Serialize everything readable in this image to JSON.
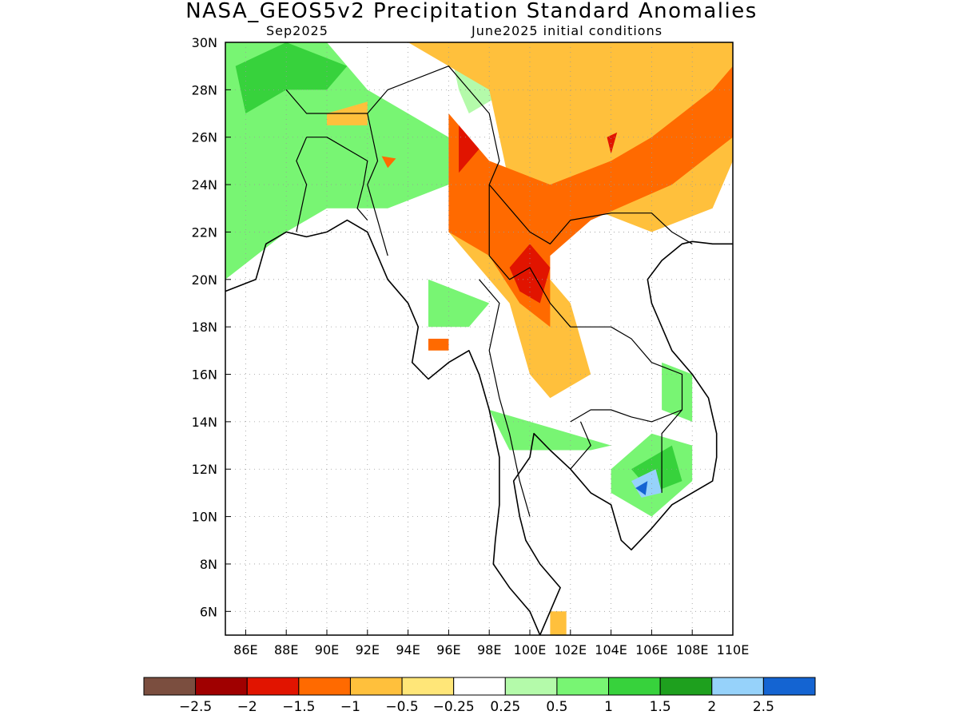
{
  "title": "NASA_GEOS5v2 Precipitation Standard Anomalies",
  "subtitle_left": "Sep2025",
  "subtitle_right": "June2025 initial conditions",
  "map": {
    "lon_range": [
      85,
      110
    ],
    "lat_range": [
      5,
      30
    ],
    "lon_ticks": [
      86,
      88,
      90,
      92,
      94,
      96,
      98,
      100,
      102,
      104,
      106,
      108,
      110
    ],
    "lat_ticks": [
      6,
      8,
      10,
      12,
      14,
      16,
      18,
      20,
      22,
      24,
      26,
      28,
      30
    ],
    "lon_tick_labels": [
      "86E",
      "88E",
      "90E",
      "92E",
      "94E",
      "96E",
      "98E",
      "100E",
      "102E",
      "104E",
      "106E",
      "108E",
      "110E"
    ],
    "lat_tick_labels": [
      "6N",
      "8N",
      "10N",
      "12N",
      "14N",
      "16N",
      "18N",
      "20N",
      "22N",
      "24N",
      "26N",
      "28N",
      "30N"
    ],
    "grid": "dotted",
    "anomaly_regions": [
      {
        "level": 1,
        "color": "#78f573",
        "lonlat": [
          [
            85,
            30
          ],
          [
            90,
            30
          ],
          [
            92,
            28
          ],
          [
            96,
            26
          ],
          [
            96,
            24
          ],
          [
            93,
            23
          ],
          [
            90,
            23
          ],
          [
            88,
            22
          ],
          [
            85,
            20
          ]
        ]
      },
      {
        "level": 1.5,
        "color": "#37d23c",
        "lonlat": [
          [
            85.5,
            29
          ],
          [
            88,
            30
          ],
          [
            91,
            29
          ],
          [
            90,
            28
          ],
          [
            88,
            28
          ],
          [
            86,
            27
          ]
        ]
      },
      {
        "level": 1,
        "color": "#78f573",
        "lonlat": [
          [
            95,
            20
          ],
          [
            98,
            19
          ],
          [
            97,
            18
          ],
          [
            95,
            18
          ]
        ]
      },
      {
        "level": 1,
        "color": "#78f573",
        "lonlat": [
          [
            98,
            14.5
          ],
          [
            104,
            13
          ],
          [
            103,
            12.8
          ],
          [
            99,
            12.8
          ]
        ]
      },
      {
        "level": 1,
        "color": "#78f573",
        "lonlat": [
          [
            104,
            12
          ],
          [
            106,
            13.5
          ],
          [
            108,
            13
          ],
          [
            108,
            11.5
          ],
          [
            106,
            10
          ],
          [
            104,
            11
          ]
        ]
      },
      {
        "level": 1.5,
        "color": "#37d23c",
        "lonlat": [
          [
            105,
            12
          ],
          [
            107,
            13
          ],
          [
            107.5,
            11.5
          ],
          [
            106,
            11
          ]
        ]
      },
      {
        "level": 2,
        "color": "#96d2fa",
        "lonlat": [
          [
            105,
            11.5
          ],
          [
            106.2,
            12
          ],
          [
            106.5,
            11
          ],
          [
            105.5,
            10.8
          ]
        ]
      },
      {
        "level": 2.5,
        "color": "#1464d2",
        "lonlat": [
          [
            105.2,
            11.2
          ],
          [
            105.8,
            11.5
          ],
          [
            105.7,
            10.9
          ]
        ]
      },
      {
        "level": 1,
        "color": "#78f573",
        "lonlat": [
          [
            106.5,
            16.5
          ],
          [
            108,
            16
          ],
          [
            108,
            14
          ],
          [
            106.5,
            14.5
          ]
        ]
      },
      {
        "level": 0.5,
        "color": "#b4faaa",
        "lonlat": [
          [
            96,
            30
          ],
          [
            99,
            28
          ],
          [
            97,
            27
          ],
          [
            96.5,
            28
          ]
        ]
      },
      {
        "level": -0.5,
        "color": "#ffc03c",
        "lonlat": [
          [
            94,
            30
          ],
          [
            98,
            28
          ],
          [
            99,
            24
          ],
          [
            101,
            23
          ],
          [
            103,
            23
          ],
          [
            106,
            22
          ],
          [
            109,
            23
          ],
          [
            110,
            25
          ],
          [
            110,
            30
          ],
          [
            100,
            30
          ],
          [
            98,
            30
          ]
        ]
      },
      {
        "level": -0.5,
        "color": "#ffc03c",
        "lonlat": [
          [
            96,
            22
          ],
          [
            99,
            19
          ],
          [
            100,
            16
          ],
          [
            101,
            15
          ],
          [
            103,
            16
          ],
          [
            102,
            19
          ],
          [
            100,
            21
          ],
          [
            97,
            24
          ]
        ]
      },
      {
        "level": -1,
        "color": "#ff6a00",
        "lonlat": [
          [
            96,
            27
          ],
          [
            98,
            25
          ],
          [
            101,
            24
          ],
          [
            104,
            25
          ],
          [
            106,
            26
          ],
          [
            109,
            28
          ],
          [
            110,
            29
          ],
          [
            110,
            26
          ],
          [
            107,
            24
          ],
          [
            103,
            22.5
          ],
          [
            101,
            21
          ],
          [
            101,
            18
          ],
          [
            99.5,
            19
          ],
          [
            98,
            21
          ],
          [
            96,
            22
          ]
        ]
      },
      {
        "level": -1.5,
        "color": "#e11400",
        "lonlat": [
          [
            96.5,
            26.5
          ],
          [
            97.5,
            25.5
          ],
          [
            96.5,
            24.5
          ]
        ]
      },
      {
        "level": -1.5,
        "color": "#e11400",
        "lonlat": [
          [
            99,
            20.5
          ],
          [
            100,
            21.5
          ],
          [
            101,
            20.5
          ],
          [
            100.5,
            19
          ],
          [
            99.5,
            19.5
          ]
        ]
      },
      {
        "level": -1.5,
        "color": "#e11400",
        "lonlat": [
          [
            103.8,
            26
          ],
          [
            104.3,
            26.2
          ],
          [
            104,
            25.3
          ]
        ]
      },
      {
        "level": -1,
        "color": "#ff6a00",
        "lonlat": [
          [
            95,
            17.5
          ],
          [
            96,
            17.5
          ],
          [
            96,
            17
          ],
          [
            95,
            17
          ]
        ]
      },
      {
        "level": -0.5,
        "color": "#ffc03c",
        "lonlat": [
          [
            90,
            27
          ],
          [
            92,
            27.5
          ],
          [
            92,
            26.5
          ],
          [
            90,
            26.5
          ]
        ]
      },
      {
        "level": -1,
        "color": "#ff6a00",
        "lonlat": [
          [
            92.7,
            25.2
          ],
          [
            93.4,
            25.1
          ],
          [
            93,
            24.7
          ]
        ]
      },
      {
        "level": -0.5,
        "color": "#ffc03c",
        "lonlat": [
          [
            101,
            6
          ],
          [
            101.8,
            6
          ],
          [
            101.8,
            5
          ],
          [
            101,
            5
          ]
        ]
      }
    ],
    "coastlines": [
      [
        [
          85,
          19.5
        ],
        [
          86.5,
          20
        ],
        [
          87,
          21.5
        ],
        [
          88,
          22
        ],
        [
          89,
          21.8
        ],
        [
          90,
          22
        ],
        [
          91,
          22.5
        ],
        [
          92,
          22
        ],
        [
          92.5,
          21
        ],
        [
          93,
          20
        ],
        [
          94,
          19
        ],
        [
          94.5,
          18
        ],
        [
          94.2,
          16.5
        ],
        [
          95,
          15.8
        ],
        [
          96,
          16.5
        ],
        [
          97,
          17
        ],
        [
          97.5,
          16
        ],
        [
          98,
          14.5
        ],
        [
          98.5,
          12.5
        ],
        [
          98.5,
          10.5
        ],
        [
          98.3,
          9
        ],
        [
          98.2,
          8
        ],
        [
          99,
          7
        ],
        [
          100,
          6
        ],
        [
          100.5,
          5
        ]
      ],
      [
        [
          100.5,
          5
        ],
        [
          101,
          6
        ],
        [
          101.5,
          7
        ],
        [
          100.5,
          8
        ],
        [
          99.8,
          9
        ],
        [
          99.5,
          10
        ],
        [
          99.2,
          11.5
        ],
        [
          100,
          12.5
        ],
        [
          100.2,
          13.5
        ],
        [
          101,
          12.8
        ],
        [
          102,
          12
        ],
        [
          103,
          11
        ],
        [
          104,
          10.5
        ],
        [
          104.5,
          9
        ],
        [
          105,
          8.6
        ],
        [
          106,
          9.5
        ],
        [
          107,
          10.5
        ],
        [
          108,
          11
        ],
        [
          109,
          11.5
        ],
        [
          109.2,
          12.5
        ],
        [
          109.2,
          13.5
        ],
        [
          108.8,
          15
        ],
        [
          108,
          16
        ],
        [
          107,
          17
        ],
        [
          106.5,
          18
        ],
        [
          106,
          19
        ],
        [
          105.8,
          20
        ],
        [
          106.5,
          20.8
        ],
        [
          107.5,
          21.5
        ],
        [
          108,
          21.6
        ],
        [
          109,
          21.5
        ],
        [
          110,
          21.5
        ]
      ]
    ],
    "borders": [
      [
        [
          88,
          28
        ],
        [
          89,
          27
        ],
        [
          92,
          27
        ],
        [
          93,
          28
        ],
        [
          96,
          29
        ],
        [
          97,
          28
        ],
        [
          98,
          27
        ],
        [
          98.5,
          25
        ],
        [
          98,
          24
        ],
        [
          99,
          23
        ],
        [
          100,
          22
        ],
        [
          101,
          21.5
        ],
        [
          102,
          22.5
        ],
        [
          104,
          22.8
        ],
        [
          106,
          22.8
        ],
        [
          107,
          22
        ],
        [
          108,
          21.5
        ]
      ],
      [
        [
          92,
          27
        ],
        [
          92.5,
          25
        ],
        [
          92,
          24
        ],
        [
          92.5,
          22.5
        ],
        [
          93,
          21
        ]
      ],
      [
        [
          89,
          26
        ],
        [
          90,
          26
        ],
        [
          92,
          25
        ],
        [
          91.8,
          24
        ],
        [
          91.5,
          23
        ],
        [
          92,
          22.5
        ]
      ],
      [
        [
          89,
          26
        ],
        [
          88.5,
          25
        ],
        [
          89,
          24
        ],
        [
          88.5,
          22
        ]
      ],
      [
        [
          98,
          24
        ],
        [
          98,
          21
        ],
        [
          99,
          20
        ],
        [
          100,
          20.5
        ],
        [
          101,
          19
        ],
        [
          102,
          18
        ],
        [
          104,
          18
        ],
        [
          105,
          17.5
        ],
        [
          106,
          16.5
        ],
        [
          107.5,
          16
        ],
        [
          107.5,
          14.5
        ],
        [
          106.5,
          13.5
        ],
        [
          106.5,
          11
        ]
      ],
      [
        [
          97.5,
          20
        ],
        [
          98.5,
          19
        ],
        [
          98,
          17
        ],
        [
          98.5,
          15
        ],
        [
          99,
          13.5
        ],
        [
          99.5,
          11.5
        ],
        [
          100,
          10
        ]
      ],
      [
        [
          102,
          14
        ],
        [
          103,
          14.5
        ],
        [
          104,
          14.5
        ],
        [
          105,
          14.2
        ],
        [
          106,
          14
        ],
        [
          107.5,
          14.5
        ]
      ],
      [
        [
          102,
          12
        ],
        [
          103,
          13
        ],
        [
          102.5,
          14
        ]
      ]
    ]
  },
  "colorbar": {
    "colors": [
      "#7b4e3f",
      "#a00000",
      "#e11400",
      "#ff6a00",
      "#ffc03c",
      "#ffe678",
      "#ffffff",
      "#b4faaa",
      "#78f573",
      "#37d23c",
      "#1ea01e",
      "#96d2fa",
      "#1464d2"
    ],
    "labels": [
      "−2.5",
      "−2",
      "−1.5",
      "−1",
      "−0.5",
      "−0.25",
      "0.25",
      "0.5",
      "1",
      "1.5",
      "2",
      "2.5"
    ]
  }
}
